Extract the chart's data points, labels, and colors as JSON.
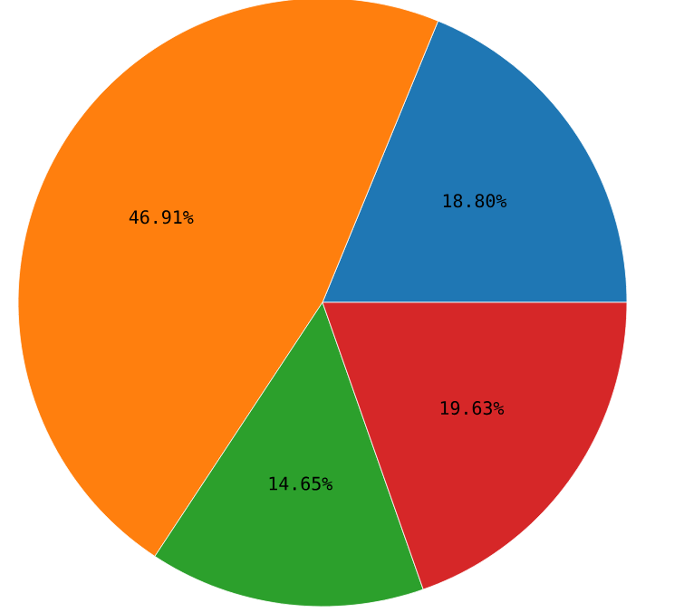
{
  "chart_data": {
    "type": "pie",
    "categories": [
      null,
      null,
      null,
      null
    ],
    "values": [
      18.8,
      46.91,
      14.65,
      19.63
    ],
    "colors": [
      "#1f77b4",
      "#ff7f0e",
      "#2ca02c",
      "#d62728"
    ],
    "value_labels": [
      "18.80%",
      "46.91%",
      "14.65%",
      "19.63%"
    ]
  }
}
